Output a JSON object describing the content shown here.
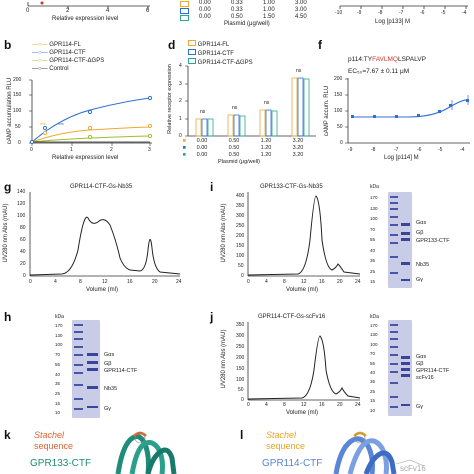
{
  "panels": {
    "top_left": {
      "xlabel": "Relative expression level",
      "ticks_x": [
        "0",
        "2",
        "4",
        "6"
      ]
    },
    "top_mid": {
      "plasmid_label": "Plasmid (μg/well)",
      "rows": [
        {
          "color": "#f0a832",
          "values": [
            "0.00",
            "0.33",
            "1.00",
            "3.00"
          ]
        },
        {
          "color": "#2f6fd0",
          "values": [
            "0.00",
            "0.33",
            "1.00",
            "3.00"
          ]
        },
        {
          "color": "#2fa88a",
          "values": [
            "0.00",
            "0.50",
            "1.50",
            "4.50"
          ]
        }
      ]
    },
    "top_right": {
      "xlabel": "Log [p133] M",
      "ticks_x": [
        "-10",
        "-9",
        "-8",
        "-7",
        "-6",
        "-5",
        "-4"
      ]
    },
    "b": {
      "label": "b",
      "ylabel": "cAMP accumulation RLU",
      "xlabel": "Relative expression level",
      "legend": [
        "GPR114-FL",
        "GPR114-CTF",
        "GPR114-CTF-ΔGPS",
        "Control"
      ],
      "ticks_x": [
        "0",
        "1",
        "2",
        "3"
      ],
      "ticks_y": [
        "0",
        "50",
        "100",
        "150",
        "200"
      ],
      "annotations": [
        "***",
        "***"
      ]
    },
    "d": {
      "label": "d",
      "ylabel": "Relative receptor expression",
      "xlabel": "Plasmid (μg/well)",
      "legend": [
        "GPR114-FL",
        "GPR114-CTF",
        "GPR114-CTF-ΔGPS"
      ],
      "ticks_y": [
        "0",
        "1",
        "2",
        "3",
        "4"
      ],
      "sig": [
        "ns",
        "ns",
        "ns",
        "ns"
      ],
      "rows": [
        {
          "color": "#f0a832",
          "values": [
            "0.00",
            "0.50",
            "1.20",
            "3.20"
          ]
        },
        {
          "color": "#2f6fd0",
          "values": [
            "0.00",
            "0.50",
            "1.20",
            "3.20"
          ]
        },
        {
          "color": "#2fa88a",
          "values": [
            "0.00",
            "0.50",
            "1.20",
            "3.20"
          ]
        }
      ]
    },
    "f": {
      "label": "f",
      "peptide_prefix": "p114:TY",
      "peptide_highlight": "FAVLMQ",
      "peptide_suffix": "LSPALVP",
      "ec50": "EC₅₀=7.67 ± 0.11 μM",
      "ylabel": "cAMP accum. RLU",
      "xlabel": "Log [p114] M",
      "ticks_x": [
        "-9",
        "-8",
        "-7",
        "-6",
        "-5",
        "-4"
      ],
      "ticks_y": [
        "0",
        "50",
        "100",
        "150",
        "200"
      ]
    },
    "g": {
      "label": "g",
      "title": "GPR114-CTF-Gs-Nb35",
      "ylabel": "UV280 nm Abs (mAU)",
      "xlabel": "Volume (ml)",
      "ticks_x": [
        "0",
        "4",
        "8",
        "12",
        "16",
        "20",
        "24"
      ],
      "ticks_y": [
        "0",
        "20",
        "40",
        "60",
        "80",
        "100",
        "120",
        "140"
      ]
    },
    "i": {
      "label": "i",
      "title": "GPR133-CTF-Gs-Nb35",
      "ylabel": "UV280 nm Abs (mAU)",
      "xlabel": "Volume (ml)",
      "ticks_x": [
        "0",
        "4",
        "8",
        "12",
        "16",
        "20",
        "24"
      ],
      "ticks_y": [
        "0",
        "50",
        "100",
        "150",
        "200",
        "250",
        "300",
        "350",
        "400"
      ],
      "gel_kda_label": "kDa",
      "gel_markers": [
        "170",
        "130",
        "100",
        "70",
        "55",
        "40",
        "35",
        "25",
        "15"
      ],
      "gel_bands": [
        "Gαs",
        "Gβ",
        "GPR133-CTF",
        "Nb35",
        "Gγ"
      ]
    },
    "h": {
      "label": "h",
      "gel_kda_label": "kDa",
      "gel_markers": [
        "170",
        "130",
        "100",
        "70",
        "55",
        "40",
        "35",
        "25",
        "15",
        "10"
      ],
      "gel_bands": [
        "Gαs",
        "Gβ",
        "GPR114-CTF",
        "Nb35",
        "Gγ"
      ]
    },
    "j": {
      "label": "j",
      "title": "GPR114-CTF-Gs-scFv16",
      "ylabel": "UV280 nm Abs (mAU)",
      "xlabel": "Volume (ml)",
      "ticks_x": [
        "0",
        "4",
        "8",
        "12",
        "16",
        "20",
        "24"
      ],
      "ticks_y": [
        "0",
        "50",
        "100",
        "150",
        "200",
        "250",
        "300",
        "350"
      ],
      "gel_kda_label": "kDa",
      "gel_markers": [
        "170",
        "130",
        "100",
        "70",
        "55",
        "40",
        "35",
        "25",
        "15",
        "10"
      ],
      "gel_bands": [
        "Gαs",
        "Gβ",
        "GPR114-CTF",
        "scFv16",
        "Gγ"
      ]
    },
    "k": {
      "label": "k",
      "stachel": "Stachel",
      "sequence": "sequence",
      "receptor": "GPR133-CTF"
    },
    "l": {
      "label": "l",
      "stachel": "Stachel",
      "sequence": "sequence",
      "receptor": "GPR114-CTF",
      "partner": "scFv16"
    }
  },
  "colors": {
    "fl": "#f0a832",
    "ctf": "#2f6fd0",
    "dgps": "#2fa88a",
    "control": "#222222",
    "peptide_red": "#d8352a",
    "stachel_orange": "#e3622f",
    "stachel_yellow": "#e8a521",
    "teal": "#1f8c7a",
    "blue_struct": "#5a86d6",
    "gel": "#c9cce6",
    "band": "#4b55a8"
  }
}
